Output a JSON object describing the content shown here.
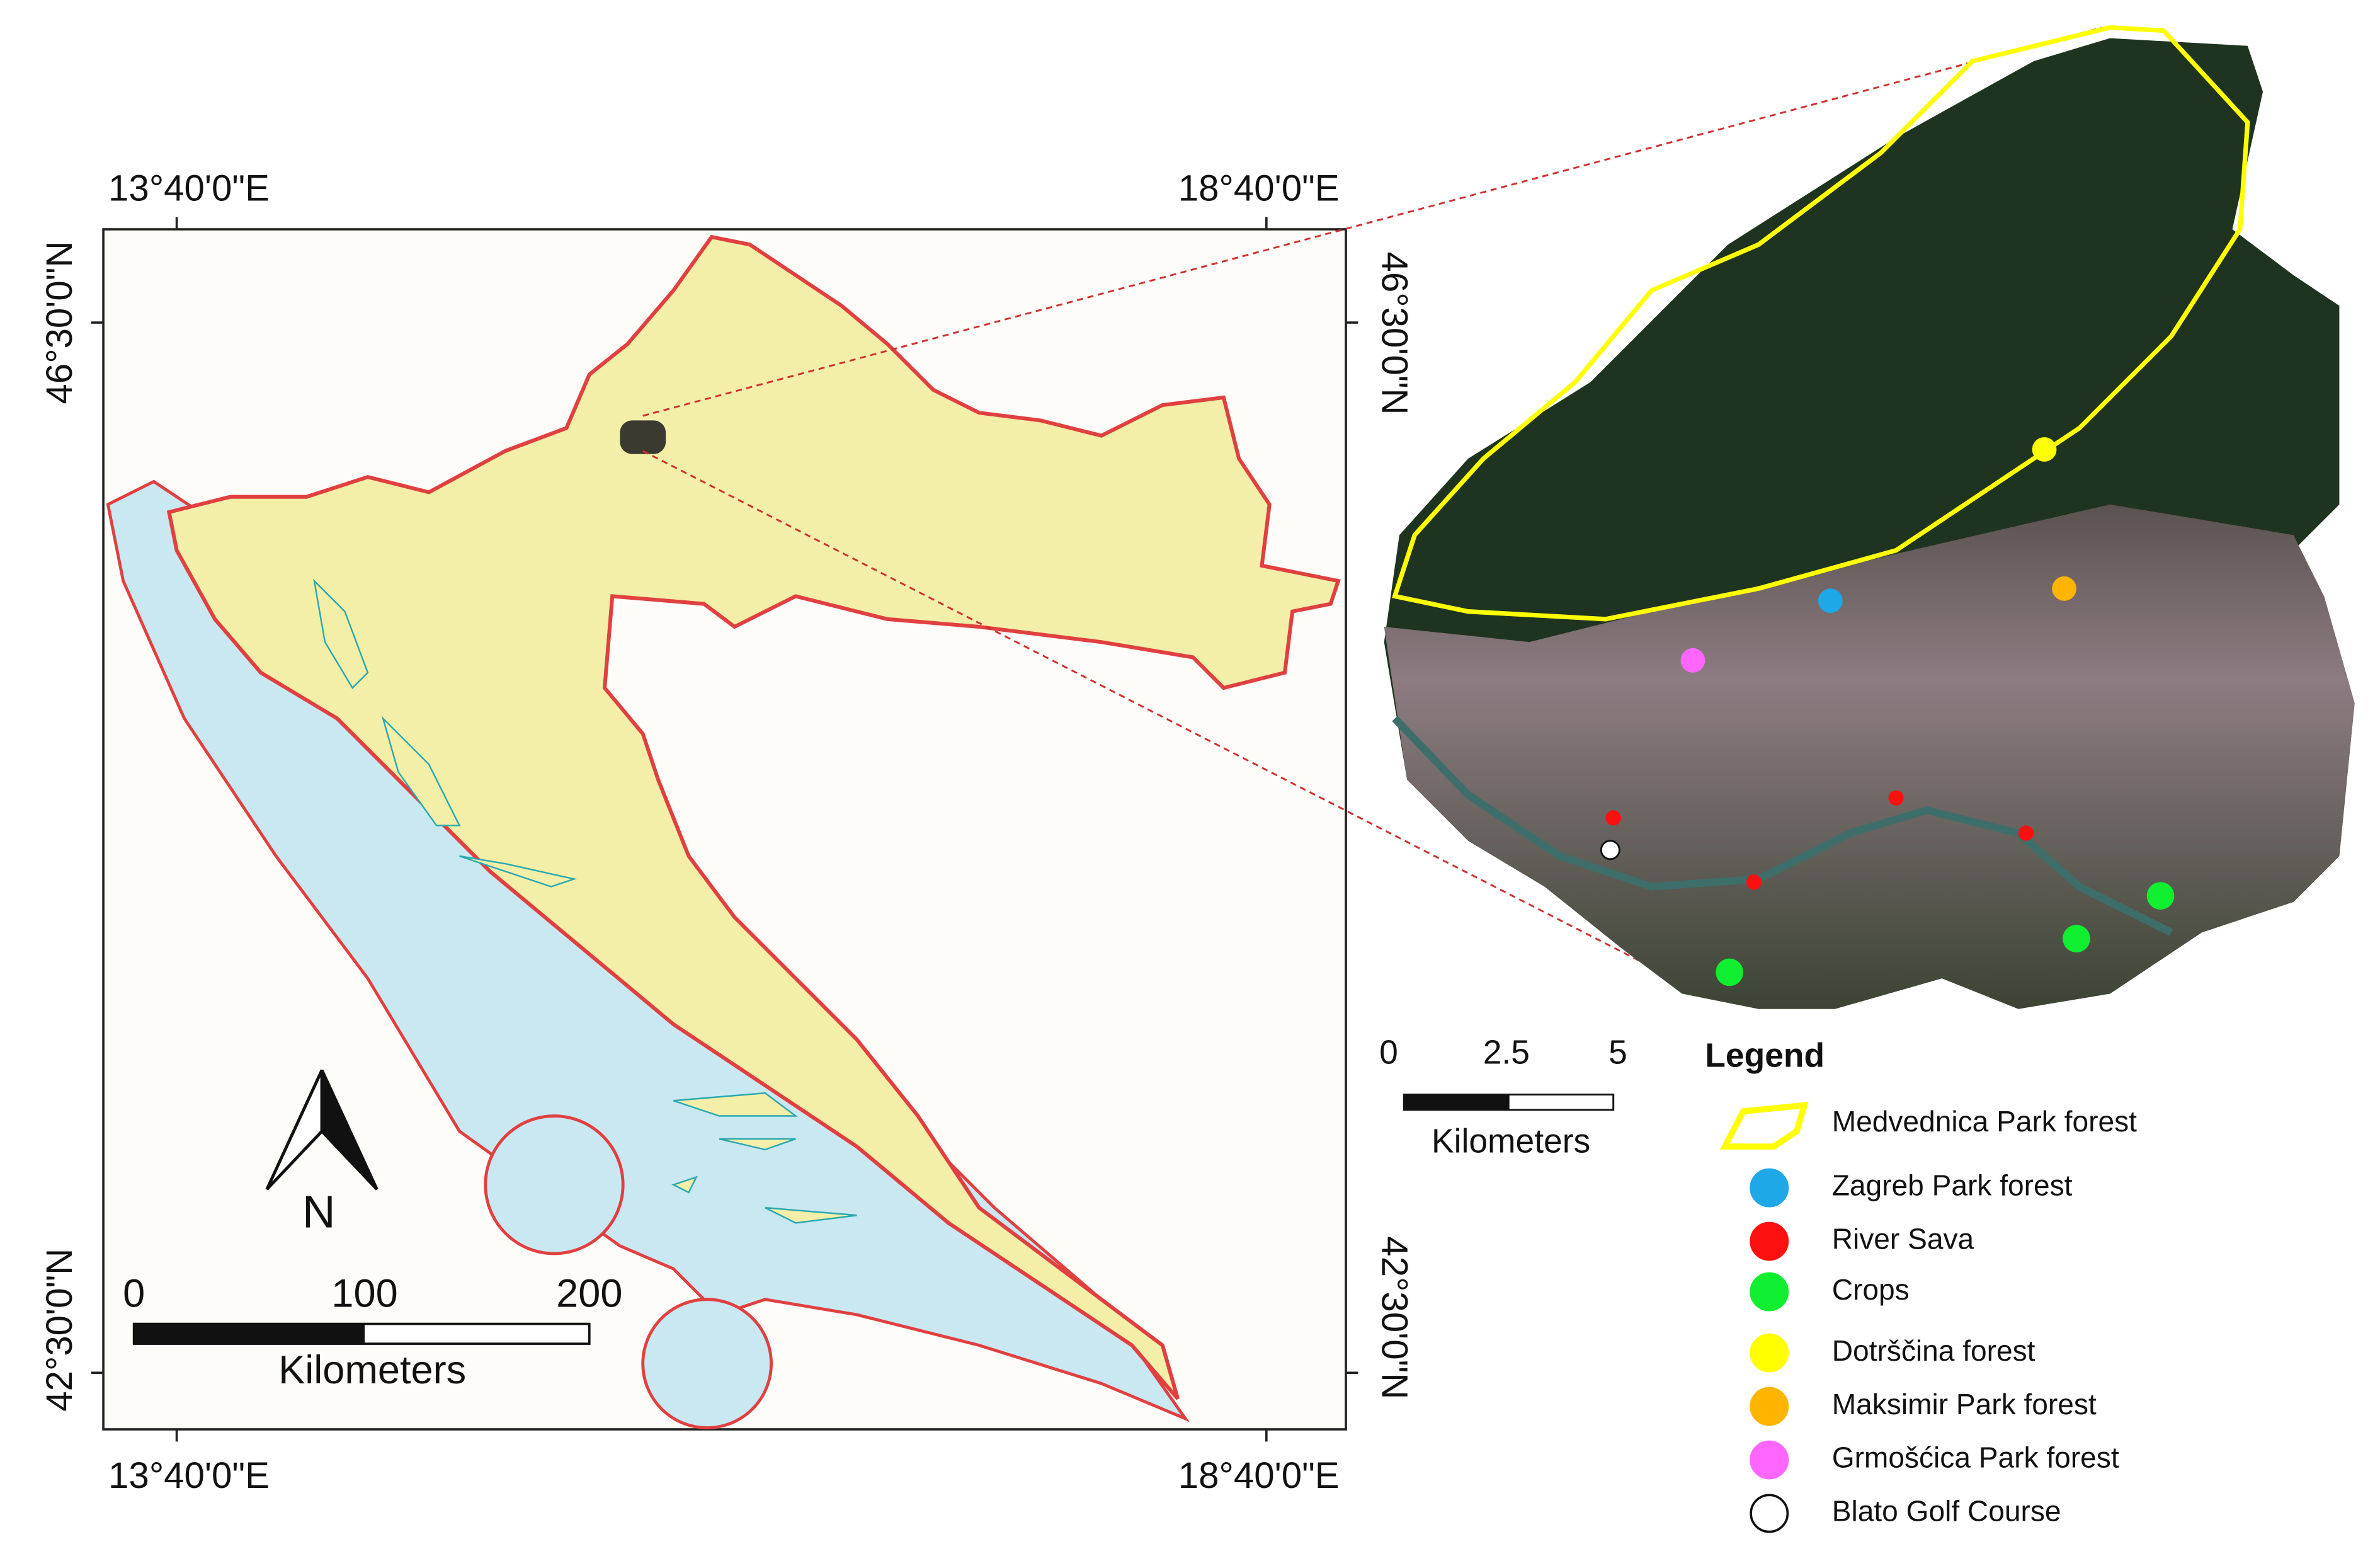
{
  "left_map": {
    "lon_labels": [
      "13°40'0\"E",
      "18°40'0\"E"
    ],
    "lat_labels": [
      "46°30'0\"N",
      "42°30'0\"N"
    ],
    "north_label": "N",
    "scale_bar": {
      "ticks": [
        0,
        100,
        200
      ],
      "unit": "Kilometers"
    }
  },
  "right_map": {
    "scale_bar": {
      "ticks": [
        0,
        2.5,
        5
      ],
      "unit": "Kilometers"
    }
  },
  "legend": {
    "title": "Legend",
    "items": [
      {
        "label": "Medvednica Park forest",
        "color": "#ffff00",
        "shape": "polygon"
      },
      {
        "label": "Zagreb Park forest",
        "color": "#1ea8e8",
        "shape": "circle"
      },
      {
        "label": "River Sava",
        "color": "#ff1010",
        "shape": "circle"
      },
      {
        "label": "Crops",
        "color": "#10ee30",
        "shape": "circle"
      },
      {
        "label": "Dotrščina forest",
        "color": "#ffff00",
        "shape": "circle"
      },
      {
        "label": "Maksimir Park forest",
        "color": "#ffb400",
        "shape": "circle"
      },
      {
        "label": "Grmošćica Park forest",
        "color": "#ff66ff",
        "shape": "circle"
      },
      {
        "label": "Blato Golf Course",
        "color": "#ffffff",
        "shape": "circle"
      }
    ]
  }
}
